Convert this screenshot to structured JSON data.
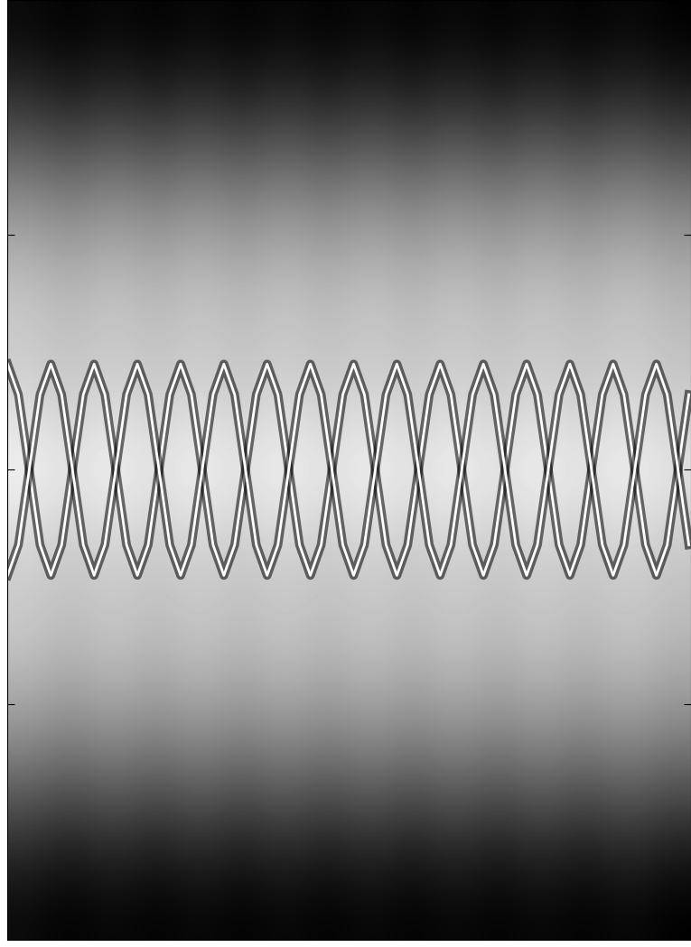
{
  "chart_data": {
    "type": "heatmap",
    "xlim": [
      0,
      7.9
    ],
    "ylim": [
      -2,
      2
    ],
    "yticks": [
      -1,
      0,
      1
    ],
    "xticks": [],
    "tick_labels": false,
    "grid": false,
    "color_range": [
      0,
      1
    ],
    "cells": [
      [
        0.04,
        0.0,
        0.04,
        0.0,
        0.04,
        0.0,
        0.04,
        0.0,
        0.04,
        0.0,
        0.04,
        0.0,
        0.04,
        0.0,
        0.04,
        0.0
      ],
      [
        0.15,
        0.09,
        0.15,
        0.09,
        0.15,
        0.09,
        0.15,
        0.09,
        0.15,
        0.09,
        0.15,
        0.09,
        0.15,
        0.09,
        0.15,
        0.09
      ],
      [
        0.33,
        0.27,
        0.33,
        0.27,
        0.33,
        0.27,
        0.33,
        0.27,
        0.33,
        0.27,
        0.33,
        0.27,
        0.33,
        0.27,
        0.33,
        0.27
      ],
      [
        0.53,
        0.47,
        0.53,
        0.47,
        0.53,
        0.47,
        0.53,
        0.47,
        0.53,
        0.47,
        0.53,
        0.47,
        0.53,
        0.47,
        0.53,
        0.47
      ],
      [
        0.68,
        0.62,
        0.68,
        0.62,
        0.68,
        0.62,
        0.68,
        0.62,
        0.68,
        0.62,
        0.68,
        0.62,
        0.68,
        0.62,
        0.68,
        0.62
      ],
      [
        0.78,
        0.72,
        0.78,
        0.72,
        0.78,
        0.72,
        0.78,
        0.72,
        0.78,
        0.72,
        0.78,
        0.72,
        0.78,
        0.72,
        0.78,
        0.72
      ],
      [
        0.8,
        0.76,
        0.8,
        0.76,
        0.8,
        0.76,
        0.8,
        0.76,
        0.8,
        0.76,
        0.8,
        0.76,
        0.8,
        0.76,
        0.8,
        0.76
      ],
      [
        0.88,
        0.82,
        0.88,
        0.82,
        0.88,
        0.82,
        0.88,
        0.82,
        0.88,
        0.82,
        0.88,
        0.82,
        0.88,
        0.82,
        0.88,
        0.82
      ],
      [
        0.95,
        0.89,
        0.95,
        0.89,
        0.95,
        0.89,
        0.95,
        0.89,
        0.95,
        0.89,
        0.95,
        0.89,
        0.95,
        0.89,
        0.95,
        0.89
      ],
      [
        0.88,
        0.82,
        0.88,
        0.82,
        0.88,
        0.82,
        0.88,
        0.82,
        0.88,
        0.82,
        0.88,
        0.82,
        0.88,
        0.82,
        0.88,
        0.82
      ],
      [
        0.8,
        0.76,
        0.8,
        0.76,
        0.8,
        0.76,
        0.8,
        0.76,
        0.8,
        0.76,
        0.8,
        0.76,
        0.8,
        0.76,
        0.8,
        0.76
      ],
      [
        0.78,
        0.72,
        0.78,
        0.72,
        0.78,
        0.72,
        0.78,
        0.72,
        0.78,
        0.72,
        0.78,
        0.72,
        0.78,
        0.72,
        0.78,
        0.72
      ],
      [
        0.68,
        0.62,
        0.68,
        0.62,
        0.68,
        0.62,
        0.68,
        0.62,
        0.68,
        0.62,
        0.68,
        0.62,
        0.68,
        0.62,
        0.68,
        0.62
      ],
      [
        0.53,
        0.47,
        0.53,
        0.47,
        0.53,
        0.47,
        0.53,
        0.47,
        0.53,
        0.47,
        0.53,
        0.47,
        0.53,
        0.47,
        0.53,
        0.47
      ],
      [
        0.33,
        0.27,
        0.33,
        0.27,
        0.33,
        0.27,
        0.33,
        0.27,
        0.33,
        0.27,
        0.33,
        0.27,
        0.33,
        0.27,
        0.33,
        0.27
      ],
      [
        0.15,
        0.09,
        0.15,
        0.09,
        0.15,
        0.09,
        0.15,
        0.09,
        0.15,
        0.09,
        0.15,
        0.09,
        0.15,
        0.09,
        0.15,
        0.09
      ],
      [
        0.04,
        0.0,
        0.04,
        0.0,
        0.04,
        0.0,
        0.04,
        0.0,
        0.04,
        0.0,
        0.04,
        0.0,
        0.04,
        0.0,
        0.04,
        0.0
      ]
    ],
    "x": [
      0,
      0.125,
      0.25,
      0.375,
      0.5,
      0.625,
      0.75,
      0.875,
      1,
      1.125,
      1.25,
      1.375,
      1.5,
      1.625,
      1.75,
      1.875,
      2,
      2.125,
      2.25,
      2.375,
      2.5,
      2.625,
      2.75,
      2.875,
      3,
      3.125,
      3.25,
      3.375,
      3.5,
      3.625,
      3.75,
      3.875,
      4,
      4.125,
      4.25,
      4.375,
      4.5,
      4.625,
      4.75,
      4.875,
      5,
      5.125,
      5.25,
      5.375,
      5.5,
      5.625,
      5.75,
      5.875,
      6,
      6.125,
      6.25,
      6.375,
      6.5,
      6.625,
      6.75,
      6.875,
      7,
      7.125,
      7.25,
      7.375,
      7.5,
      7.625,
      7.75,
      7.875
    ],
    "series": [
      {
        "color": "white",
        "line_style": "solid",
        "values": [
          0.45,
          0.32,
          0,
          -0.32,
          -0.45,
          -0.32,
          0,
          0.32,
          0.45,
          0.32,
          0,
          -0.32,
          -0.45,
          -0.32,
          0,
          0.32,
          0.45,
          0.32,
          0,
          -0.32,
          -0.45,
          -0.32,
          0,
          0.32,
          0.45,
          0.32,
          0,
          -0.32,
          -0.45,
          -0.32,
          0,
          0.32,
          0.45,
          0.32,
          0,
          -0.32,
          -0.45,
          -0.32,
          0,
          0.32,
          0.45,
          0.32,
          0,
          -0.32,
          -0.45,
          -0.32,
          0,
          0.32,
          0.45,
          0.32,
          0,
          -0.32,
          -0.45,
          -0.32,
          0,
          0.32,
          0.45,
          0.32,
          0,
          -0.32,
          -0.45,
          -0.32,
          0,
          0.32
        ]
      },
      {
        "color": "white",
        "line_style": "solid",
        "values": [
          -0.45,
          -0.32,
          0,
          0.32,
          0.45,
          0.32,
          0,
          -0.32,
          -0.45,
          -0.32,
          0,
          0.32,
          0.45,
          0.32,
          0,
          -0.32,
          -0.45,
          -0.32,
          0,
          0.32,
          0.45,
          0.32,
          0,
          -0.32,
          -0.45,
          -0.32,
          0,
          0.32,
          0.45,
          0.32,
          0,
          -0.32,
          -0.45,
          -0.32,
          0,
          0.32,
          0.45,
          0.32,
          0,
          -0.32,
          -0.45,
          -0.32,
          0,
          0.32,
          0.45,
          0.32,
          0,
          -0.32,
          -0.45,
          -0.32,
          0,
          0.32,
          0.45,
          0.32,
          0,
          -0.32,
          -0.45,
          -0.32,
          0,
          0.32,
          0.45,
          0.32,
          0,
          -0.32
        ]
      }
    ]
  }
}
